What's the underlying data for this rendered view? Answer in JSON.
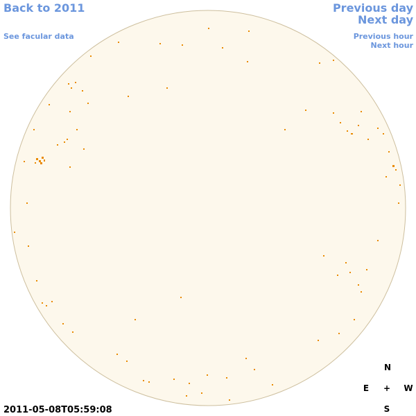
{
  "links": {
    "back": "Back to 2011",
    "facular": "See facular data",
    "previous_day": "Previous day",
    "next_day": "Next day",
    "previous_hour": "Previous hour",
    "next_hour": "Next hour"
  },
  "timestamp": "2011-05-08T05:59:08",
  "compass": {
    "north": "N",
    "east": "E",
    "center": "+",
    "west": "W",
    "south": "S"
  }
}
